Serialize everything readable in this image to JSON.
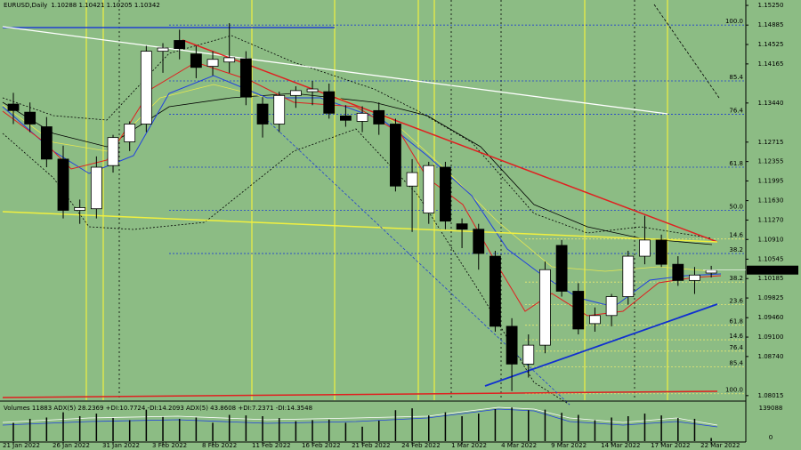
{
  "chart_data": {
    "type": "candlestick",
    "title": "EURUSD,Daily",
    "ohlc_text": "1.10288 1.10421 1.10205 1.10342",
    "current_price": {
      "value": 1.10342,
      "label": "1.10342"
    },
    "categories": [
      "21 Jan 2022",
      null,
      null,
      "26 Jan 2022",
      null,
      null,
      "31 Jan 2022",
      null,
      null,
      "3 Feb 2022",
      null,
      null,
      "8 Feb 2022",
      null,
      null,
      "11 Feb 2022",
      null,
      null,
      "16 Feb 2022",
      null,
      null,
      "21 Feb 2022",
      null,
      null,
      "24 Feb 2022",
      null,
      null,
      "1 Mar 2022",
      null,
      null,
      "4 Mar 2022",
      null,
      null,
      "9 Mar 2022",
      null,
      null,
      "14 Mar 2022",
      null,
      null,
      "17 Mar 2022",
      null,
      null,
      "22 Mar 2022"
    ],
    "candles": [
      [
        1.1342,
        1.1363,
        1.1305,
        1.133
      ],
      [
        1.1327,
        1.1345,
        1.129,
        1.1305
      ],
      [
        1.13,
        1.1318,
        1.1225,
        1.124
      ],
      [
        1.124,
        1.1265,
        1.113,
        1.1145
      ],
      [
        1.1145,
        1.1165,
        1.112,
        1.115
      ],
      [
        1.1148,
        1.1245,
        1.113,
        1.1225
      ],
      [
        1.1228,
        1.1285,
        1.1215,
        1.128
      ],
      [
        1.1272,
        1.131,
        1.1255,
        1.1305
      ],
      [
        1.1305,
        1.145,
        1.129,
        1.144
      ],
      [
        1.144,
        1.1455,
        1.14,
        1.1446
      ],
      [
        1.146,
        1.148,
        1.1425,
        1.1445
      ],
      [
        1.1435,
        1.145,
        1.139,
        1.141
      ],
      [
        1.1412,
        1.144,
        1.1395,
        1.1425
      ],
      [
        1.142,
        1.1492,
        1.14,
        1.1428
      ],
      [
        1.1426,
        1.144,
        1.134,
        1.1355
      ],
      [
        1.1342,
        1.1355,
        1.128,
        1.1305
      ],
      [
        1.1305,
        1.1365,
        1.129,
        1.1358
      ],
      [
        1.1358,
        1.1375,
        1.1335,
        1.1367
      ],
      [
        1.1365,
        1.1385,
        1.134,
        1.137
      ],
      [
        1.1365,
        1.138,
        1.1315,
        1.1325
      ],
      [
        1.132,
        1.134,
        1.13,
        1.1312
      ],
      [
        1.131,
        1.1338,
        1.129,
        1.1325
      ],
      [
        1.133,
        1.1345,
        1.1285,
        1.1305
      ],
      [
        1.1305,
        1.1315,
        1.118,
        1.119
      ],
      [
        1.119,
        1.124,
        1.1105,
        1.1215
      ],
      [
        1.114,
        1.1235,
        1.112,
        1.1228
      ],
      [
        1.1225,
        1.1235,
        1.111,
        1.1125
      ],
      [
        1.112,
        1.113,
        1.1075,
        1.111
      ],
      [
        1.111,
        1.112,
        1.1035,
        1.1065
      ],
      [
        1.106,
        1.107,
        1.092,
        1.093
      ],
      [
        1.093,
        1.0945,
        1.081,
        1.086
      ],
      [
        1.086,
        1.0915,
        1.0835,
        1.0895
      ],
      [
        1.0895,
        1.105,
        1.088,
        1.1035
      ],
      [
        1.108,
        1.109,
        1.0985,
        1.0995
      ],
      [
        1.0995,
        1.101,
        1.0915,
        1.0925
      ],
      [
        1.0935,
        1.0965,
        1.092,
        1.095
      ],
      [
        1.095,
        1.099,
        1.093,
        1.0985
      ],
      [
        1.0985,
        1.107,
        1.097,
        1.106
      ],
      [
        1.106,
        1.1135,
        1.1045,
        1.109
      ],
      [
        1.109,
        1.11,
        1.104,
        1.1045
      ],
      [
        1.1045,
        1.106,
        1.1005,
        1.1015
      ],
      [
        1.1015,
        1.104,
        1.099,
        1.1025
      ],
      [
        1.10288,
        1.10421,
        1.10205,
        1.10342
      ]
    ],
    "ylim": [
      1.0793,
      1.1535
    ],
    "yticks": [
      {
        "value": 1.1525,
        "label": "1.15250"
      },
      1.14885,
      1.14525,
      1.14165,
      {
        "value": 1.1344,
        "label": "1.13440"
      },
      1.12715,
      1.12355,
      1.11995,
      {
        "value": 1.1163,
        "label": "1.11630"
      },
      {
        "value": 1.1127,
        "label": "1.11270"
      },
      {
        "value": 1.1091,
        "label": "1.10910"
      },
      1.10545,
      1.10185,
      1.09825,
      {
        "value": 1.0946,
        "label": "1.09460"
      },
      {
        "value": 1.091,
        "label": "1.09100"
      },
      {
        "value": 1.0874,
        "label": "1.08740"
      },
      1.08015
    ],
    "fib_levels": [
      {
        "label": "100.0",
        "price": 1.14885
      },
      {
        "label": "85.4",
        "price": 1.1385
      },
      {
        "label": "76.4",
        "price": 1.1323
      },
      {
        "label": "61.8",
        "price": 1.1225
      },
      {
        "label": "50.0",
        "price": 1.1145
      },
      {
        "label": "38.2",
        "price": 1.1065
      }
    ],
    "fib_levels_lower": [
      {
        "label": "14.6",
        "price": 1.1092
      },
      {
        "label": "38.2",
        "price": 1.1012
      },
      {
        "label": "23.6",
        "price": 1.097
      },
      {
        "label": "61.8",
        "price": 1.0932
      },
      {
        "label": "14.6",
        "price": 1.0905
      },
      {
        "label": "76.4",
        "price": 1.0884
      },
      {
        "label": "85.4",
        "price": 1.0855
      },
      {
        "label": "100.0",
        "price": 1.0805
      }
    ],
    "indicator_text": "Volumes 11883  ADX(5) 28.2369 +DI:10.7724 -DI:14.2093  ADX(5) 43.8608 +DI:7.2371 -DI:14.3548",
    "volume_lim": [
      0,
      139088
    ],
    "volume_ticks": [
      139088,
      0
    ],
    "volumes": [
      70000,
      85000,
      90000,
      110000,
      95000,
      105000,
      88000,
      80000,
      120000,
      92000,
      85000,
      90000,
      70000,
      100000,
      98000,
      95000,
      88000,
      76000,
      80000,
      82000,
      70000,
      55000,
      78000,
      118000,
      125000,
      98000,
      110000,
      95000,
      105000,
      122000,
      128000,
      118000,
      120000,
      108000,
      100000,
      80000,
      90000,
      95000,
      105000,
      98000,
      88000,
      85000,
      11883
    ],
    "colors": {
      "background": "#8cbc84",
      "bull": "#ffffff",
      "bear": "#000000",
      "fib": "#1f3fd0",
      "fib_lower": "#e8e870"
    }
  }
}
